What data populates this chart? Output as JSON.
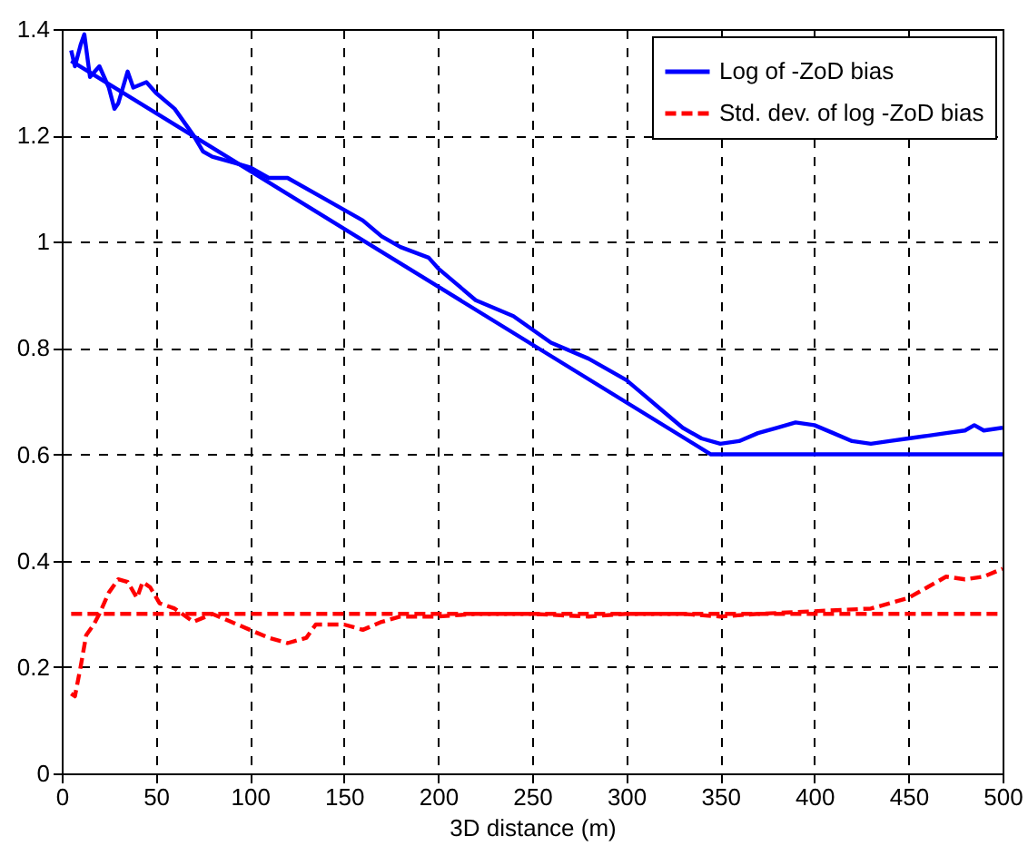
{
  "chart_data": {
    "type": "line",
    "xlabel": "3D distance (m)",
    "xlim": [
      0,
      500
    ],
    "xticks": [
      0,
      50,
      100,
      150,
      200,
      250,
      300,
      350,
      400,
      450,
      500
    ],
    "ylim": [
      0,
      1.4
    ],
    "yticks": [
      0,
      0.2,
      0.4,
      0.6,
      0.8,
      1,
      1.2,
      1.4
    ],
    "grid": true,
    "legend": "top right",
    "marker": "none",
    "series": [
      {
        "name": "Log of -ZoD bias",
        "color": "#0000ff",
        "line_style": "solid",
        "x": [
          5,
          7,
          10,
          12,
          15,
          20,
          25,
          28,
          30,
          35,
          38,
          45,
          50,
          60,
          70,
          75,
          80,
          90,
          100,
          110,
          120,
          140,
          150,
          160,
          170,
          180,
          195,
          200,
          210,
          220,
          240,
          260,
          280,
          300,
          310,
          320,
          330,
          340,
          350,
          360,
          370,
          380,
          390,
          400,
          410,
          420,
          430,
          440,
          450,
          460,
          470,
          480,
          485,
          490,
          500
        ],
        "values": [
          1.36,
          1.33,
          1.37,
          1.39,
          1.31,
          1.33,
          1.29,
          1.25,
          1.26,
          1.32,
          1.29,
          1.3,
          1.28,
          1.25,
          1.2,
          1.17,
          1.16,
          1.15,
          1.14,
          1.12,
          1.12,
          1.08,
          1.06,
          1.04,
          1.01,
          0.99,
          0.97,
          0.95,
          0.92,
          0.89,
          0.86,
          0.81,
          0.78,
          0.74,
          0.71,
          0.68,
          0.65,
          0.63,
          0.62,
          0.625,
          0.64,
          0.65,
          0.66,
          0.655,
          0.64,
          0.625,
          0.62,
          0.625,
          0.63,
          0.635,
          0.64,
          0.645,
          0.655,
          0.645,
          0.65
        ]
      },
      {
        "name": "Std. dev. of log -ZoD bias",
        "color": "#ff0000",
        "line_style": "dashed",
        "x": [
          5,
          7,
          10,
          13,
          17,
          20,
          25,
          30,
          35,
          40,
          43,
          47,
          52,
          60,
          70,
          80,
          90,
          100,
          110,
          120,
          130,
          135,
          150,
          160,
          170,
          180,
          200,
          220,
          250,
          280,
          300,
          330,
          350,
          370,
          400,
          430,
          440,
          450,
          460,
          470,
          480,
          490,
          500
        ],
        "values": [
          0.15,
          0.145,
          0.2,
          0.26,
          0.28,
          0.3,
          0.34,
          0.365,
          0.36,
          0.33,
          0.36,
          0.35,
          0.32,
          0.31,
          0.285,
          0.3,
          0.285,
          0.27,
          0.255,
          0.245,
          0.255,
          0.28,
          0.28,
          0.27,
          0.285,
          0.295,
          0.295,
          0.3,
          0.3,
          0.295,
          0.3,
          0.3,
          0.295,
          0.3,
          0.305,
          0.31,
          0.32,
          0.33,
          0.35,
          0.37,
          0.365,
          0.37,
          0.385
        ]
      },
      {
        "color": "#0000ff",
        "line_style": "solid",
        "x": [
          5,
          345,
          500
        ],
        "values": [
          1.34,
          0.6,
          0.6
        ]
      },
      {
        "color": "#ff0000",
        "line_style": "dashed",
        "x": [
          5,
          500
        ],
        "values": [
          0.3,
          0.3
        ]
      }
    ]
  }
}
